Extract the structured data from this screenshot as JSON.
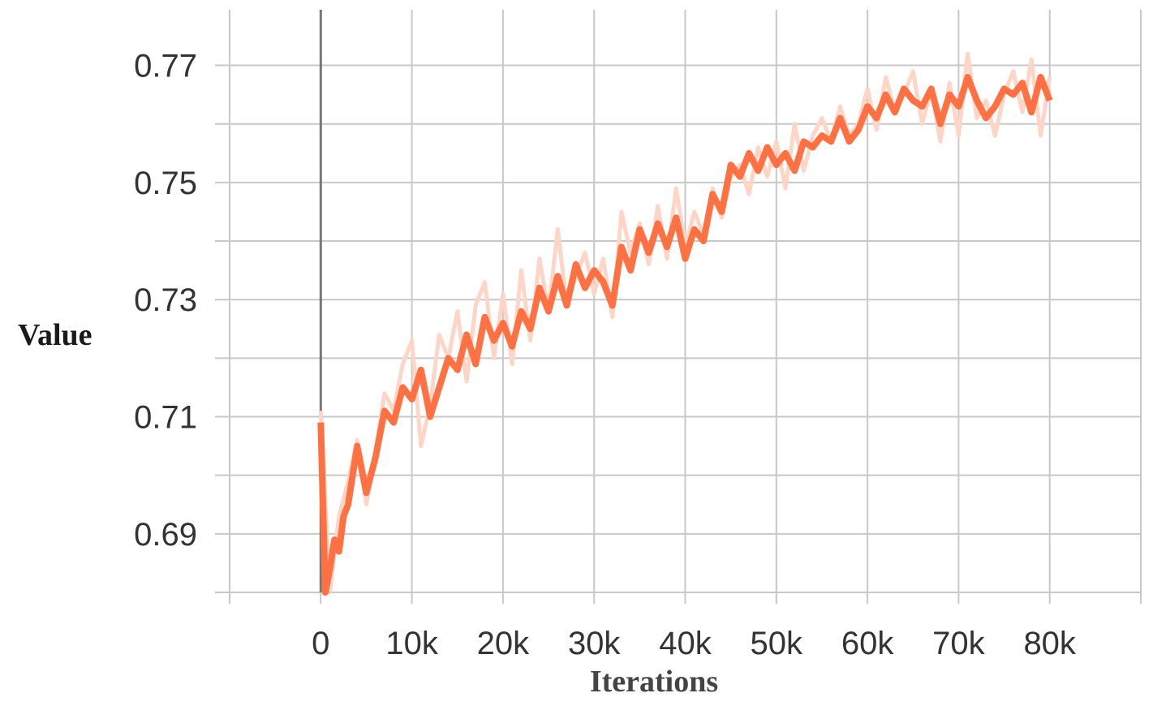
{
  "chart_data": {
    "type": "line",
    "title": "",
    "xlabel": "Iterations",
    "ylabel": "Value",
    "xlim": [
      -10000,
      90000
    ],
    "ylim": [
      0.68,
      0.7795
    ],
    "x_ticks": [
      0,
      10000,
      20000,
      30000,
      40000,
      50000,
      60000,
      70000,
      80000
    ],
    "x_tick_labels": [
      "0",
      "10k",
      "20k",
      "30k",
      "40k",
      "50k",
      "60k",
      "70k",
      "80k"
    ],
    "y_ticks": [
      0.69,
      0.71,
      0.73,
      0.75,
      0.77
    ],
    "y_tick_labels": [
      "0.69",
      "0.71",
      "0.73",
      "0.75",
      "0.77"
    ],
    "grid": true,
    "legend": "none",
    "colors": {
      "smoothed": "#ff7043",
      "raw": "#ffd5c7",
      "grid": "#c8c8c8",
      "zero_line": "#777777"
    },
    "series": [
      {
        "role": "raw",
        "x": [
          0,
          1000,
          2000,
          3000,
          4000,
          5000,
          6000,
          7000,
          8000,
          9000,
          10000,
          11000,
          12000,
          13000,
          14000,
          15000,
          16000,
          17000,
          18000,
          19000,
          20000,
          21000,
          22000,
          23000,
          24000,
          25000,
          26000,
          27000,
          28000,
          29000,
          30000,
          31000,
          32000,
          33000,
          34000,
          35000,
          36000,
          37000,
          38000,
          39000,
          40000,
          41000,
          42000,
          43000,
          44000,
          45000,
          46000,
          47000,
          48000,
          49000,
          50000,
          51000,
          52000,
          53000,
          54000,
          55000,
          56000,
          57000,
          58000,
          59000,
          60000,
          61000,
          62000,
          63000,
          64000,
          65000,
          66000,
          67000,
          68000,
          69000,
          70000,
          71000,
          72000,
          73000,
          74000,
          75000,
          76000,
          77000,
          78000,
          79000,
          80000
        ],
        "values": [
          0.711,
          0.679,
          0.693,
          0.699,
          0.706,
          0.695,
          0.704,
          0.714,
          0.711,
          0.719,
          0.723,
          0.705,
          0.712,
          0.724,
          0.72,
          0.728,
          0.716,
          0.729,
          0.733,
          0.72,
          0.731,
          0.719,
          0.735,
          0.723,
          0.737,
          0.728,
          0.742,
          0.729,
          0.734,
          0.738,
          0.731,
          0.737,
          0.727,
          0.745,
          0.738,
          0.743,
          0.736,
          0.746,
          0.737,
          0.749,
          0.739,
          0.745,
          0.741,
          0.749,
          0.744,
          0.751,
          0.753,
          0.748,
          0.756,
          0.751,
          0.757,
          0.749,
          0.76,
          0.752,
          0.758,
          0.761,
          0.757,
          0.763,
          0.758,
          0.76,
          0.766,
          0.759,
          0.768,
          0.762,
          0.765,
          0.769,
          0.76,
          0.766,
          0.757,
          0.767,
          0.758,
          0.772,
          0.761,
          0.764,
          0.758,
          0.765,
          0.769,
          0.762,
          0.771,
          0.758,
          0.768
        ]
      },
      {
        "role": "smoothed",
        "x": [
          0,
          500,
          1000,
          1500,
          2000,
          2500,
          3000,
          4000,
          5000,
          6000,
          7000,
          8000,
          9000,
          10000,
          11000,
          12000,
          13000,
          14000,
          15000,
          16000,
          17000,
          18000,
          19000,
          20000,
          21000,
          22000,
          23000,
          24000,
          25000,
          26000,
          27000,
          28000,
          29000,
          30000,
          31000,
          32000,
          33000,
          34000,
          35000,
          36000,
          37000,
          38000,
          39000,
          40000,
          41000,
          42000,
          43000,
          44000,
          45000,
          46000,
          47000,
          48000,
          49000,
          50000,
          51000,
          52000,
          53000,
          54000,
          55000,
          56000,
          57000,
          58000,
          59000,
          60000,
          61000,
          62000,
          63000,
          64000,
          65000,
          66000,
          67000,
          68000,
          69000,
          70000,
          71000,
          72000,
          73000,
          74000,
          75000,
          76000,
          77000,
          78000,
          79000,
          80000
        ],
        "values": [
          0.709,
          0.679,
          0.684,
          0.689,
          0.687,
          0.693,
          0.695,
          0.705,
          0.697,
          0.703,
          0.711,
          0.709,
          0.715,
          0.713,
          0.718,
          0.71,
          0.715,
          0.72,
          0.718,
          0.724,
          0.719,
          0.727,
          0.723,
          0.726,
          0.722,
          0.728,
          0.725,
          0.732,
          0.728,
          0.734,
          0.729,
          0.736,
          0.732,
          0.735,
          0.733,
          0.729,
          0.739,
          0.735,
          0.742,
          0.738,
          0.743,
          0.739,
          0.744,
          0.737,
          0.742,
          0.74,
          0.748,
          0.745,
          0.753,
          0.751,
          0.755,
          0.752,
          0.756,
          0.753,
          0.755,
          0.752,
          0.757,
          0.756,
          0.758,
          0.757,
          0.761,
          0.757,
          0.759,
          0.763,
          0.761,
          0.765,
          0.762,
          0.766,
          0.764,
          0.763,
          0.766,
          0.76,
          0.765,
          0.763,
          0.768,
          0.764,
          0.761,
          0.763,
          0.766,
          0.765,
          0.767,
          0.762,
          0.768,
          0.764
        ]
      }
    ]
  }
}
